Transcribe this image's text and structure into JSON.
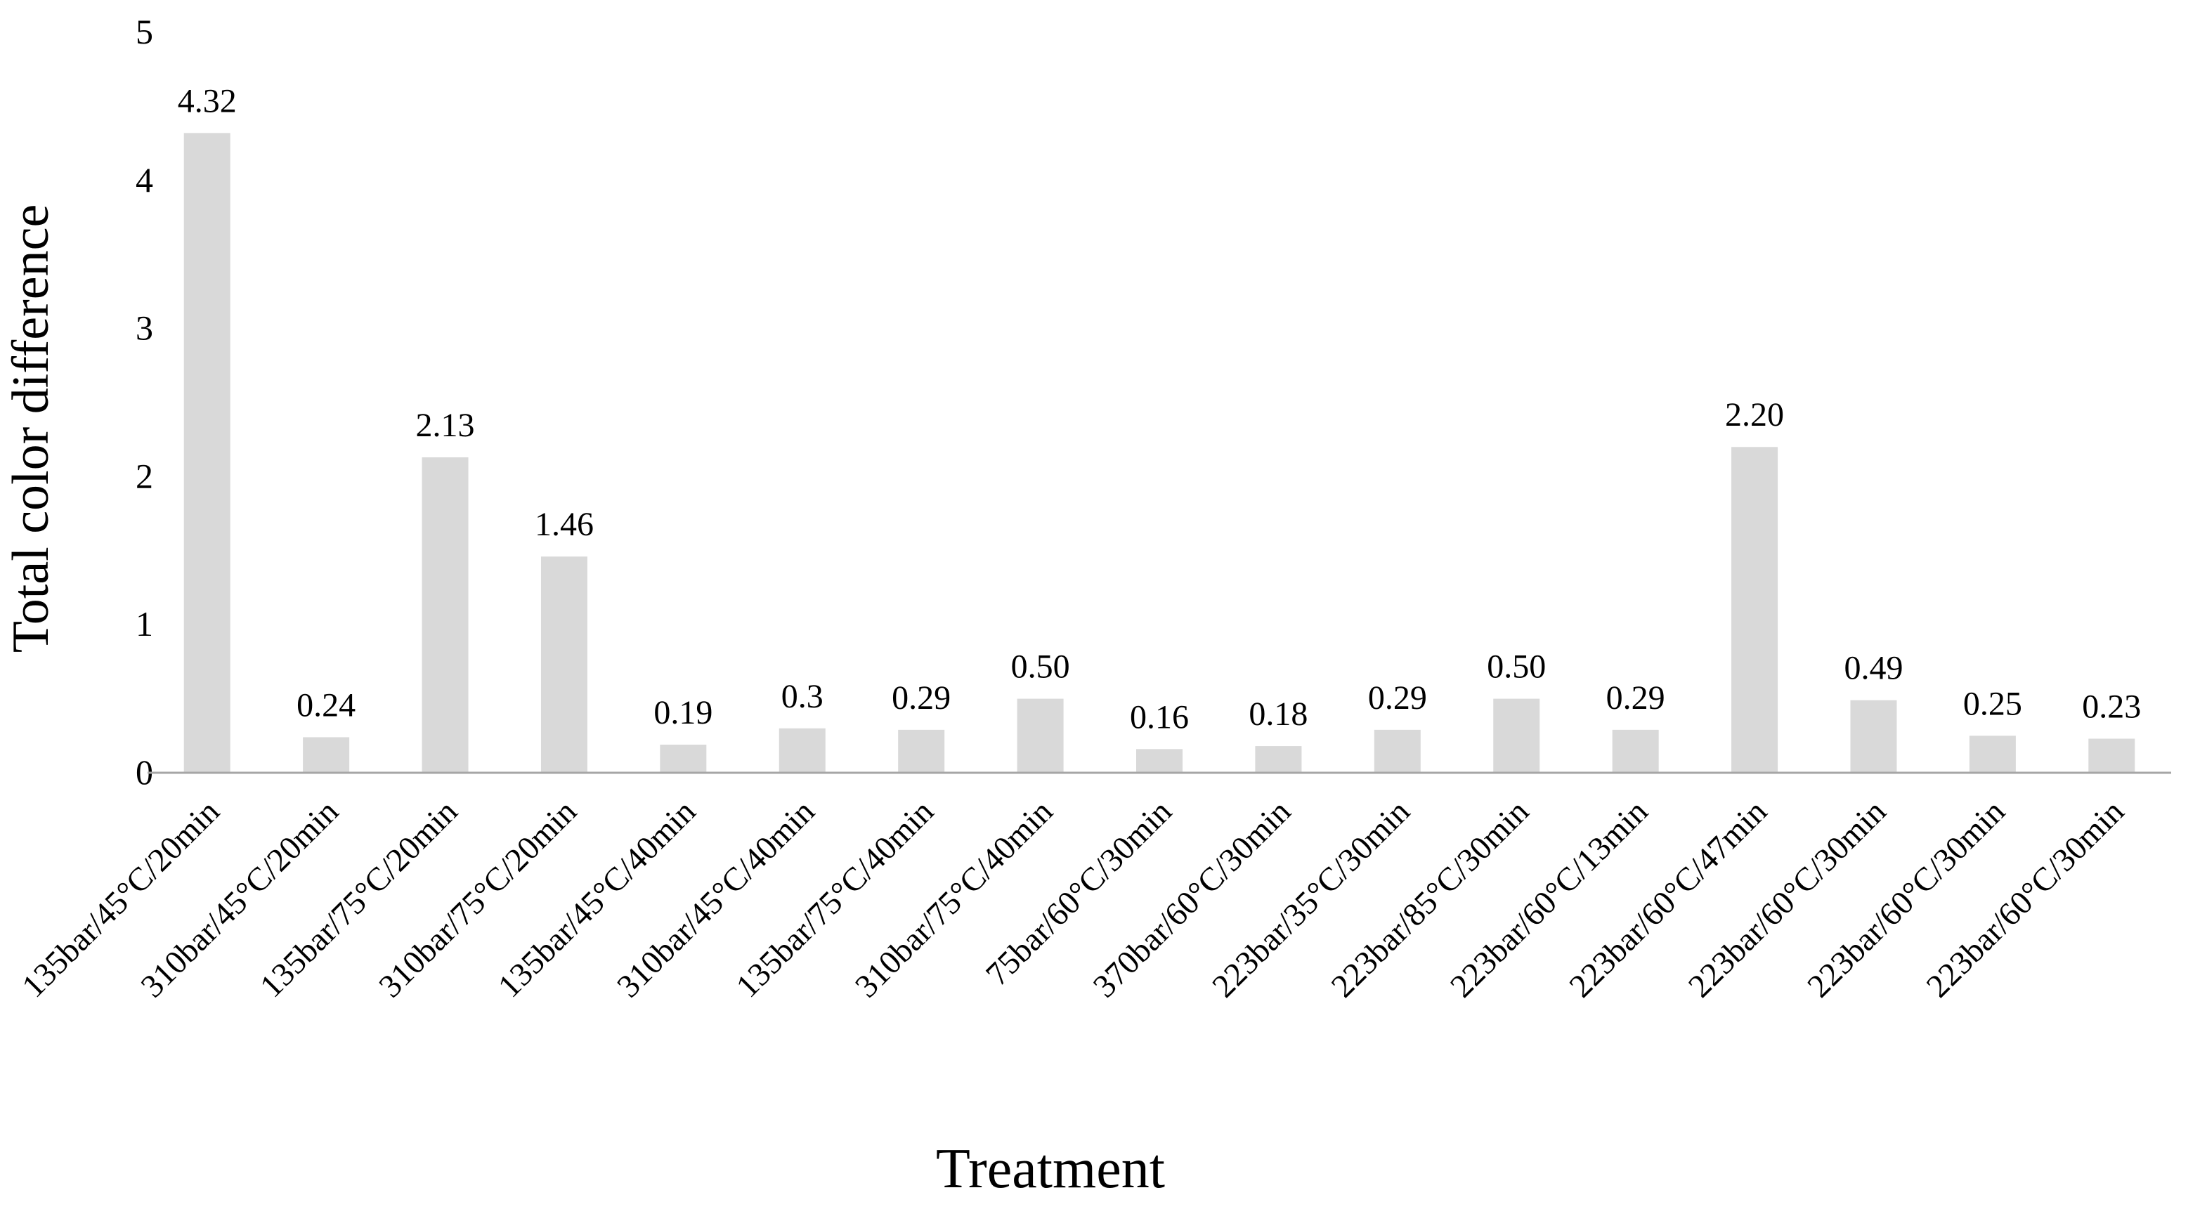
{
  "chart_data": {
    "type": "bar",
    "title": "",
    "xlabel": "Treatment",
    "ylabel": "Total color difference",
    "ylim": [
      0,
      5
    ],
    "yticks": [
      "0",
      "1",
      "2",
      "3",
      "4",
      "5"
    ],
    "grid": false,
    "legend": "none",
    "bar_color": "#d9d9d9",
    "axis_color": "#a6a6a6",
    "categories": [
      "135bar/45°C/20min",
      "310bar/45°C/20min",
      "135bar/75°C/20min",
      "310bar/75°C/20min",
      "135bar/45°C/40min",
      "310bar/45°C/40min",
      "135bar/75°C/40min",
      "310bar/75°C/40min",
      "75bar/60°C/30min",
      "370bar/60°C/30min",
      "223bar/35°C/30min",
      "223bar/85°C/30min",
      "223bar/60°C/13min",
      "223bar/60°C/47min",
      "223bar/60°C/30min",
      "223bar/60°C/30min",
      "223bar/60°C/30min"
    ],
    "values": [
      4.32,
      0.24,
      2.13,
      1.46,
      0.19,
      0.3,
      0.29,
      0.5,
      0.16,
      0.18,
      0.29,
      0.5,
      0.29,
      2.2,
      0.49,
      0.25,
      0.23
    ],
    "data_labels": [
      "4.32",
      "0.24",
      "2.13",
      "1.46",
      "0.19",
      "0.3",
      "0.29",
      "0.50",
      "0.16",
      "0.18",
      "0.29",
      "0.50",
      "0.29",
      "2.20",
      "0.49",
      "0.25",
      "0.23"
    ]
  }
}
